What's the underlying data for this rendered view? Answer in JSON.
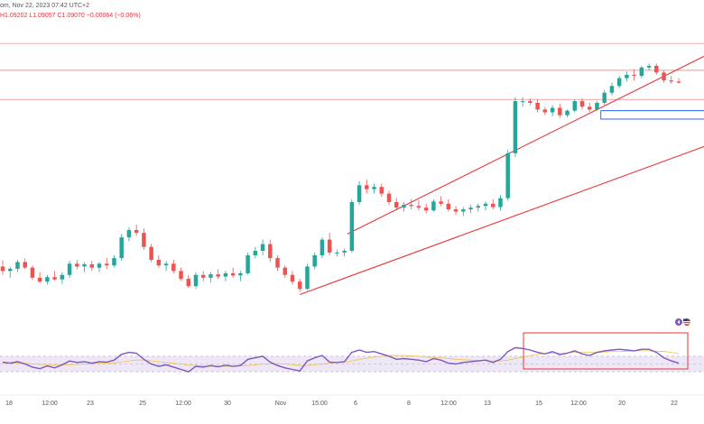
{
  "header": {
    "line1": "om, Nov 22, 2023 07:42 UTC+2",
    "line2_prefix": "H",
    "high": "H1.09202",
    "low": "L1.09057",
    "close": "C1.09070",
    "change": "−0.00064 (−0.06%)"
  },
  "colors": {
    "up": "#26a69a",
    "down": "#ef5350",
    "channel": "#e8353b",
    "level": "#f28b8b",
    "box": "#2962ff",
    "rsi": "#7e57c2",
    "rsi_ma": "#f0c34a",
    "rsi_band": "#ede7f6",
    "highlight": "#e8353b"
  },
  "x_labels": [
    "18",
    "12:00",
    "23",
    "25",
    "12:00",
    "30",
    "Nov",
    "15:00",
    "6",
    "8",
    "12:00",
    "13",
    "15",
    "12:00",
    "20",
    "22"
  ],
  "chart_data": {
    "type": "candlestick",
    "title": "",
    "xlabel": "",
    "ylabel": "",
    "ylim": [
      1.04,
      1.096
    ],
    "grid": false,
    "candles": [
      [
        1.052,
        1.0531,
        1.0505,
        1.0512
      ],
      [
        1.0512,
        1.052,
        1.05,
        1.0516
      ],
      [
        1.0516,
        1.0532,
        1.051,
        1.0528
      ],
      [
        1.0528,
        1.0534,
        1.0515,
        1.0518
      ],
      [
        1.0518,
        1.0522,
        1.0496,
        1.05
      ],
      [
        1.05,
        1.051,
        1.049,
        1.0493
      ],
      [
        1.0493,
        1.0505,
        1.0488,
        1.0501
      ],
      [
        1.0501,
        1.0512,
        1.0495,
        1.0497
      ],
      [
        1.0497,
        1.051,
        1.0489,
        1.0505
      ],
      [
        1.0505,
        1.053,
        1.05,
        1.0525
      ],
      [
        1.0525,
        1.0532,
        1.0515,
        1.052
      ],
      [
        1.052,
        1.0528,
        1.051,
        1.0524
      ],
      [
        1.0524,
        1.053,
        1.0512,
        1.0518
      ],
      [
        1.0518,
        1.0528,
        1.051,
        1.0525
      ],
      [
        1.0525,
        1.0535,
        1.0515,
        1.0522
      ],
      [
        1.0522,
        1.054,
        1.0518,
        1.0535
      ],
      [
        1.0535,
        1.0578,
        1.053,
        1.0572
      ],
      [
        1.0572,
        1.059,
        1.0565,
        1.0585
      ],
      [
        1.0585,
        1.0595,
        1.0575,
        1.058
      ],
      [
        1.058,
        1.0588,
        1.055,
        1.0555
      ],
      [
        1.0555,
        1.056,
        1.0528,
        1.0532
      ],
      [
        1.0532,
        1.054,
        1.0518,
        1.0522
      ],
      [
        1.0522,
        1.053,
        1.0512,
        1.0525
      ],
      [
        1.0525,
        1.0532,
        1.0508,
        1.0512
      ],
      [
        1.0512,
        1.0518,
        1.0495,
        1.0498
      ],
      [
        1.0498,
        1.0505,
        1.0482,
        1.0485
      ],
      [
        1.0485,
        1.051,
        1.048,
        1.0505
      ],
      [
        1.0505,
        1.0512,
        1.0494,
        1.05
      ],
      [
        1.05,
        1.051,
        1.0492,
        1.0506
      ],
      [
        1.0506,
        1.0515,
        1.0498,
        1.0502
      ],
      [
        1.0502,
        1.0512,
        1.0494,
        1.0508
      ],
      [
        1.0508,
        1.0518,
        1.05,
        1.0504
      ],
      [
        1.0504,
        1.0512,
        1.0494,
        1.0508
      ],
      [
        1.0508,
        1.0545,
        1.0505,
        1.054
      ],
      [
        1.054,
        1.0555,
        1.0535,
        1.0548
      ],
      [
        1.0548,
        1.0568,
        1.054,
        1.056
      ],
      [
        1.056,
        1.0568,
        1.0528,
        1.0535
      ],
      [
        1.0535,
        1.054,
        1.0512,
        1.0518
      ],
      [
        1.0518,
        1.0522,
        1.05,
        1.0505
      ],
      [
        1.0505,
        1.0512,
        1.0488,
        1.0493
      ],
      [
        1.0493,
        1.0498,
        1.0475,
        1.048
      ],
      [
        1.048,
        1.0525,
        1.0478,
        1.052
      ],
      [
        1.052,
        1.0545,
        1.0515,
        1.054
      ],
      [
        1.054,
        1.0572,
        1.0535,
        1.0568
      ],
      [
        1.0568,
        1.058,
        1.054,
        1.0545
      ],
      [
        1.0545,
        1.055,
        1.0538,
        1.0545
      ],
      [
        1.0545,
        1.0552,
        1.0538,
        1.0548
      ],
      [
        1.0548,
        1.064,
        1.0545,
        1.0635
      ],
      [
        1.0635,
        1.0672,
        1.063,
        1.0665
      ],
      [
        1.0665,
        1.0675,
        1.065,
        1.0658
      ],
      [
        1.0658,
        1.0668,
        1.065,
        1.0662
      ],
      [
        1.0662,
        1.0668,
        1.0645,
        1.065
      ],
      [
        1.065,
        1.0655,
        1.063,
        1.0635
      ],
      [
        1.0635,
        1.0642,
        1.062,
        1.0625
      ],
      [
        1.0625,
        1.0635,
        1.0618,
        1.063
      ],
      [
        1.063,
        1.064,
        1.0622,
        1.0628
      ],
      [
        1.0628,
        1.0638,
        1.062,
        1.0625
      ],
      [
        1.0625,
        1.0632,
        1.0615,
        1.062
      ],
      [
        1.062,
        1.064,
        1.0618,
        1.0636
      ],
      [
        1.0636,
        1.0645,
        1.0628,
        1.0632
      ],
      [
        1.0632,
        1.064,
        1.0618,
        1.0622
      ],
      [
        1.0622,
        1.0628,
        1.0612,
        1.0618
      ],
      [
        1.0618,
        1.0626,
        1.061,
        1.0622
      ],
      [
        1.0622,
        1.063,
        1.0615,
        1.0625
      ],
      [
        1.0625,
        1.0632,
        1.0618,
        1.0628
      ],
      [
        1.0628,
        1.0636,
        1.062,
        1.0632
      ],
      [
        1.0632,
        1.064,
        1.0622,
        1.0626
      ],
      [
        1.0626,
        1.0648,
        1.062,
        1.0642
      ],
      [
        1.0642,
        1.0728,
        1.0638,
        1.0722
      ],
      [
        1.0722,
        1.0822,
        1.0715,
        1.0815
      ],
      [
        1.0815,
        1.0822,
        1.0805,
        1.0815
      ],
      [
        1.0815,
        1.082,
        1.0808,
        1.0812
      ],
      [
        1.0812,
        1.0818,
        1.0795,
        1.08
      ],
      [
        1.08,
        1.0805,
        1.079,
        1.0795
      ],
      [
        1.0795,
        1.0808,
        1.0788,
        1.0803
      ],
      [
        1.0803,
        1.081,
        1.0785,
        1.079
      ],
      [
        1.079,
        1.08,
        1.0786,
        1.0798
      ],
      [
        1.0798,
        1.0818,
        1.0795,
        1.0815
      ],
      [
        1.0815,
        1.082,
        1.08,
        1.0805
      ],
      [
        1.0805,
        1.0812,
        1.0796,
        1.08
      ],
      [
        1.08,
        1.0815,
        1.0798,
        1.0812
      ],
      [
        1.0812,
        1.0835,
        1.0808,
        1.083
      ],
      [
        1.083,
        1.0848,
        1.0825,
        1.0842
      ],
      [
        1.0842,
        1.086,
        1.0838,
        1.0856
      ],
      [
        1.0856,
        1.0868,
        1.085,
        1.0862
      ],
      [
        1.0862,
        1.0872,
        1.0852,
        1.086
      ],
      [
        1.086,
        1.0878,
        1.0856,
        1.0875
      ],
      [
        1.0875,
        1.0882,
        1.087,
        1.0878
      ],
      [
        1.0878,
        1.0882,
        1.0862,
        1.0866
      ],
      [
        1.0866,
        1.087,
        1.0848,
        1.0852
      ],
      [
        1.0852,
        1.086,
        1.0846,
        1.085
      ],
      [
        1.085,
        1.0856,
        1.0846,
        1.0848
      ]
    ],
    "horizontal_levels": [
      1.0918,
      1.087,
      1.0818
    ],
    "channel_upper": [
      [
        1.0578,
        1.0895
      ]
    ],
    "channel_lower": [
      [
        1.047,
        1.0734
      ]
    ],
    "rsi": {
      "range": [
        0,
        100
      ],
      "band": [
        30,
        70
      ],
      "values": [
        55,
        52,
        56,
        50,
        42,
        38,
        45,
        40,
        48,
        58,
        54,
        56,
        52,
        56,
        55,
        60,
        75,
        80,
        78,
        62,
        50,
        44,
        48,
        42,
        36,
        30,
        44,
        42,
        46,
        43,
        47,
        44,
        46,
        62,
        66,
        70,
        55,
        46,
        40,
        36,
        32,
        58,
        66,
        72,
        55,
        54,
        56,
        80,
        86,
        80,
        82,
        76,
        70,
        62,
        64,
        62,
        60,
        56,
        64,
        60,
        52,
        50,
        54,
        56,
        58,
        60,
        54,
        62,
        82,
        92,
        90,
        86,
        80,
        76,
        82,
        74,
        78,
        84,
        76,
        72,
        80,
        84,
        86,
        88,
        86,
        84,
        88,
        88,
        80,
        66,
        58,
        52
      ],
      "ma_values": [
        52,
        52,
        52,
        52,
        50,
        49,
        48,
        47,
        47,
        48,
        49,
        50,
        51,
        52,
        52,
        53,
        55,
        58,
        60,
        60,
        58,
        56,
        54,
        52,
        50,
        47,
        46,
        45,
        44,
        44,
        44,
        44,
        45,
        46,
        48,
        50,
        51,
        51,
        50,
        48,
        46,
        46,
        48,
        50,
        52,
        54,
        55,
        58,
        62,
        65,
        68,
        70,
        72,
        72,
        72,
        71,
        70,
        68,
        67,
        66,
        64,
        62,
        61,
        60,
        59,
        59,
        58,
        58,
        60,
        64,
        68,
        72,
        75,
        77,
        78,
        78,
        79,
        80,
        80,
        80,
        80,
        81,
        82,
        82,
        83,
        84,
        84,
        84,
        83,
        82,
        80,
        77
      ]
    }
  }
}
